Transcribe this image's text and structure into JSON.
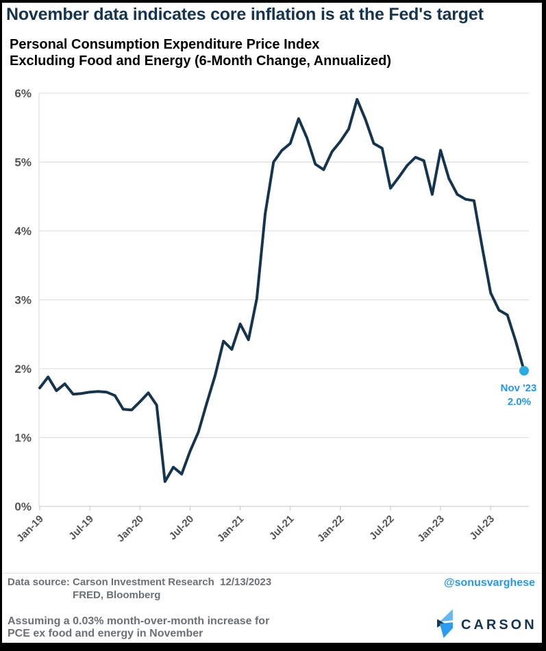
{
  "header": {
    "title": "November data indicates core inflation is at the Fed's target",
    "subtitle_line1": "Personal Consumption Expenditure Price Index",
    "subtitle_line2": "Excluding Food and Energy (6-Month Change, Annualized)"
  },
  "chart_data": {
    "type": "line",
    "title": "Personal Consumption Expenditure Price Index Excluding Food and Energy (6-Month Change, Annualized)",
    "x_start": "Jan-19",
    "x_end": "Nov-23",
    "x_frequency": "monthly",
    "x_tick_labels": [
      "Jan-19",
      "Jul-19",
      "Jan-20",
      "Jul-20",
      "Jan-21",
      "Jul-21",
      "Jan-22",
      "Jul-22",
      "Jan-23",
      "Jul-23"
    ],
    "y_tick_labels": [
      "0%",
      "1%",
      "2%",
      "3%",
      "4%",
      "5%",
      "6%"
    ],
    "ylim": [
      0,
      6
    ],
    "grid": "horizontal-only",
    "legend": "none",
    "series": [
      {
        "name": "Core PCE price index, 6-month change annualized",
        "color": "#15344e",
        "values": [
          1.72,
          1.88,
          1.68,
          1.78,
          1.63,
          1.64,
          1.66,
          1.67,
          1.66,
          1.61,
          1.41,
          1.4,
          1.52,
          1.65,
          1.47,
          0.36,
          0.57,
          0.47,
          0.8,
          1.08,
          1.5,
          1.9,
          2.4,
          2.28,
          2.65,
          2.42,
          3.02,
          4.25,
          5.0,
          5.17,
          5.27,
          5.63,
          5.35,
          4.97,
          4.89,
          5.15,
          5.3,
          5.48,
          5.91,
          5.62,
          5.27,
          5.2,
          4.62,
          4.78,
          4.95,
          5.07,
          5.02,
          4.53,
          5.17,
          4.76,
          4.53,
          4.46,
          4.44,
          3.75,
          3.1,
          2.85,
          2.78,
          2.4,
          1.97
        ]
      }
    ],
    "annotation": {
      "line1": "Nov '23",
      "line2": "2.0%",
      "text_color": "#2196f3",
      "dot_color": "#29abe2"
    }
  },
  "footer": {
    "source_label": "Data source: ",
    "source_line1": "Carson Investment Research  12/13/2023",
    "source_line2": "FRED, Bloomberg",
    "handle": "@sonusvarghese",
    "note_line1": "Assuming a 0.03% month-over-month increase for",
    "note_line2": "PCE ex food and energy in November",
    "logo_text": "CARSON"
  },
  "colors": {
    "line": "#15344e",
    "title": "#15344e",
    "axis_label": "#545454",
    "grid": "#d9d9d9",
    "tick": "#c4c4c4",
    "footer_text": "#6b7075",
    "accent_blue": "#2196f3",
    "dot_blue": "#29abe2"
  }
}
